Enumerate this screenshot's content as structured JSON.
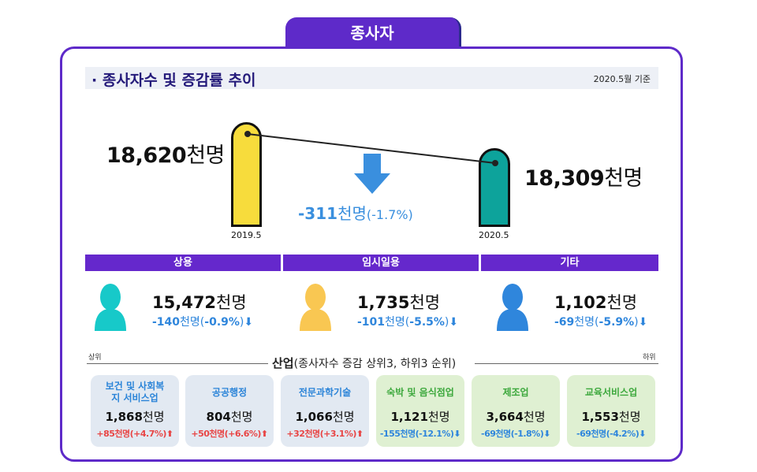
{
  "header": {
    "tab": "종사자",
    "title": "· 종사자수 및 증감률 추이",
    "date": "2020.5월 기준"
  },
  "trend": {
    "before": {
      "year": "2019.5",
      "value": "18,620",
      "unit": "천명"
    },
    "after": {
      "year": "2020.5",
      "value": "18,309",
      "unit": "천명"
    },
    "diff": {
      "value": "-311",
      "unit": "천명",
      "pct": "(-1.7%)"
    }
  },
  "categories": [
    {
      "label": "상용",
      "value": "15,472",
      "unit": "천명",
      "change": "-140",
      "change_unit": "천명(",
      "pct": "-0.9%",
      "close": ")",
      "color": "#17c9c9"
    },
    {
      "label": "임시일용",
      "value": "1,735",
      "unit": "천명",
      "change": "-101",
      "change_unit": "천명(",
      "pct": "-5.5%",
      "close": ")",
      "color": "#f9c752"
    },
    {
      "label": "기타",
      "value": "1,102",
      "unit": "천명",
      "change": "-69",
      "change_unit": "천명(",
      "pct": "-5.9%",
      "close": ")",
      "color": "#2f86dc"
    }
  ],
  "industry": {
    "top_label": "상위",
    "bottom_label": "하위",
    "heading": "산업",
    "subheading": "(종사자수 증감 상위3, 하위3 순위)",
    "cards": [
      {
        "name": "보건 및 사회복지 서비스업",
        "value": "1,868",
        "unit": "천명",
        "change": "+85천명(+4.7%)",
        "dir": "up"
      },
      {
        "name": "공공행정",
        "value": "804",
        "unit": "천명",
        "change": "+50천명(+6.6%)",
        "dir": "up"
      },
      {
        "name": "전문과학기술",
        "value": "1,066",
        "unit": "천명",
        "change": "+32천명(+3.1%)",
        "dir": "up"
      },
      {
        "name": "숙박 및 음식점업",
        "value": "1,121",
        "unit": "천명",
        "change": "-155천명(-12.1%)",
        "dir": "down"
      },
      {
        "name": "제조업",
        "value": "3,664",
        "unit": "천명",
        "change": "-69천명(-1.8%)",
        "dir": "down"
      },
      {
        "name": "교육서비스업",
        "value": "1,553",
        "unit": "천명",
        "change": "-69천명(-4.2%)",
        "dir": "down"
      }
    ]
  }
}
